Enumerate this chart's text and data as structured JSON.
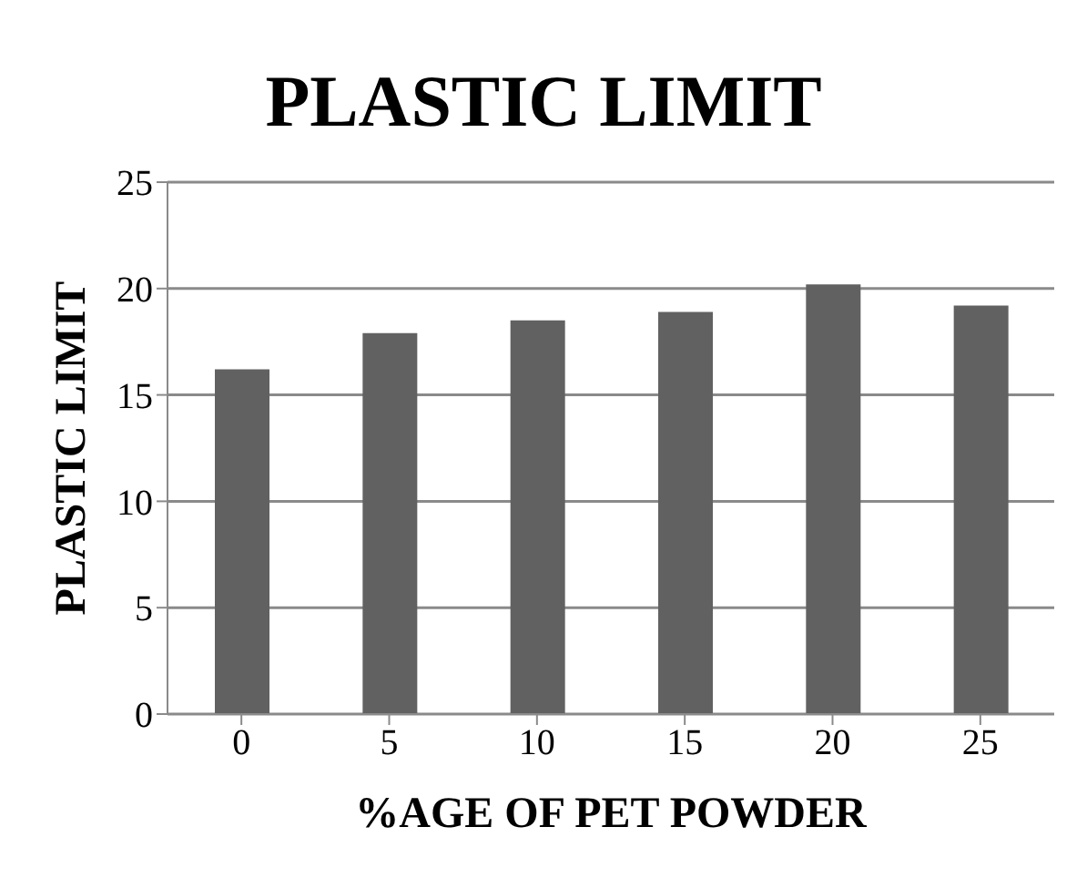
{
  "chart_data": {
    "type": "bar",
    "title": "PLASTIC LIMIT",
    "xlabel": "%AGE OF PET POWDER",
    "ylabel": "PLASTIC LIMIT",
    "categories": [
      "0",
      "5",
      "10",
      "15",
      "20",
      "25"
    ],
    "values": [
      16.2,
      17.9,
      18.5,
      18.9,
      20.2,
      19.2
    ],
    "color": "#616161",
    "ylim": [
      0,
      25
    ],
    "yticks": [
      0,
      5,
      10,
      15,
      20,
      25
    ],
    "grid": "y",
    "legend": false
  }
}
